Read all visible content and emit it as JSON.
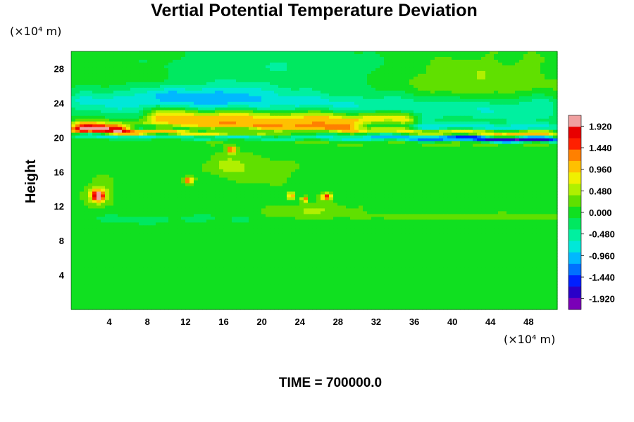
{
  "chart_data": {
    "type": "heatmap",
    "title": "Vertial Potential Temperature Deviation",
    "ylabel": "Height",
    "xlabel": "",
    "x_unit": "(×10⁴ m)",
    "y_unit": "(×10⁴ m)",
    "footer": "TIME = 700000.0",
    "xlim": [
      0,
      51
    ],
    "ylim": [
      0,
      30
    ],
    "x_ticks": [
      4,
      8,
      12,
      16,
      20,
      24,
      28,
      32,
      36,
      40,
      44,
      48
    ],
    "y_ticks": [
      4,
      8,
      12,
      16,
      20,
      24,
      28
    ],
    "colorbar": {
      "min": -2.16,
      "max": 2.16,
      "ticks": [
        "1.920",
        "1.440",
        "0.960",
        "0.480",
        "0.000",
        "-0.480",
        "-0.960",
        "-1.440",
        "-1.920"
      ],
      "tick_values": [
        1.92,
        1.44,
        0.96,
        0.48,
        0.0,
        -0.48,
        -0.96,
        -1.44,
        -1.92
      ],
      "colors": [
        "#7a00b8",
        "#2a00c8",
        "#0020ff",
        "#0070ff",
        "#00b8ff",
        "#00e8d8",
        "#00f0a0",
        "#00e860",
        "#10e020",
        "#60e000",
        "#b0f000",
        "#f0f000",
        "#ffc000",
        "#ff8000",
        "#ff2000",
        "#e80000",
        "#f0a0a0"
      ]
    },
    "features": [
      {
        "kind": "band",
        "y": 20.9,
        "x0": 0,
        "x1": 51,
        "thickness": 1.1,
        "slope": -0.015,
        "value": 2.1
      },
      {
        "kind": "band",
        "y": 21.3,
        "x0": 6,
        "x1": 51,
        "thickness": 0.6,
        "slope": -0.03,
        "value": -2.0
      },
      {
        "kind": "band",
        "y": 20.2,
        "x0": 0,
        "x1": 51,
        "thickness": 0.5,
        "slope": -0.01,
        "value": -1.6
      },
      {
        "kind": "band",
        "y": 22.6,
        "x0": 8,
        "x1": 36,
        "thickness": 1.4,
        "slope": -0.02,
        "value": 1.2
      },
      {
        "kind": "band",
        "y": 21.9,
        "x0": 30,
        "x1": 51,
        "thickness": 0.8,
        "slope": -0.02,
        "value": -1.3
      },
      {
        "kind": "band",
        "y": 24.2,
        "x0": 0,
        "x1": 51,
        "thickness": 2.2,
        "slope": -0.02,
        "value": -0.7
      },
      {
        "kind": "blob",
        "x": 2.8,
        "y": 13.2,
        "rx": 0.6,
        "ry": 0.6,
        "value": 1.9
      },
      {
        "kind": "blob",
        "x": 12.3,
        "y": 15.0,
        "rx": 0.5,
        "ry": 0.4,
        "value": 1.6
      },
      {
        "kind": "blob",
        "x": 23.1,
        "y": 13.2,
        "rx": 0.3,
        "ry": 0.4,
        "value": 1.6
      },
      {
        "kind": "blob",
        "x": 24.5,
        "y": 12.8,
        "rx": 0.3,
        "ry": 0.35,
        "value": 1.5
      },
      {
        "kind": "blob",
        "x": 26.8,
        "y": 13.1,
        "rx": 0.5,
        "ry": 0.35,
        "value": 1.6
      },
      {
        "kind": "blob",
        "x": 16.8,
        "y": 18.6,
        "rx": 0.5,
        "ry": 0.4,
        "value": 1.5
      },
      {
        "kind": "blob",
        "x": 16.5,
        "y": 16.8,
        "rx": 1.8,
        "ry": 1.2,
        "value": 0.6
      },
      {
        "kind": "blob",
        "x": 20.5,
        "y": 16.0,
        "rx": 2.5,
        "ry": 1.3,
        "value": 0.4
      },
      {
        "kind": "blob",
        "x": 25.0,
        "y": 11.5,
        "rx": 4.0,
        "ry": 0.8,
        "value": 0.45
      },
      {
        "kind": "blob",
        "x": 3.0,
        "y": 13.5,
        "rx": 1.5,
        "ry": 1.4,
        "value": 0.6
      },
      {
        "kind": "blob",
        "x": 40.0,
        "y": 10.8,
        "rx": 12.0,
        "ry": 0.35,
        "value": 0.35
      },
      {
        "kind": "blob",
        "x": 10.0,
        "y": 10.5,
        "rx": 9.0,
        "ry": 0.6,
        "value": -0.2
      },
      {
        "kind": "blob",
        "x": 42.0,
        "y": 26.5,
        "rx": 9.0,
        "ry": 3.0,
        "value": 0.4
      },
      {
        "kind": "blob",
        "x": 5.0,
        "y": 26.5,
        "rx": 6.0,
        "ry": 2.5,
        "value": 0.15
      },
      {
        "kind": "blob",
        "x": 22.0,
        "y": 28.0,
        "rx": 14.0,
        "ry": 2.5,
        "value": -0.35
      },
      {
        "kind": "blob",
        "x": 14.0,
        "y": 25.0,
        "rx": 8.0,
        "ry": 1.2,
        "value": -0.55
      }
    ]
  }
}
